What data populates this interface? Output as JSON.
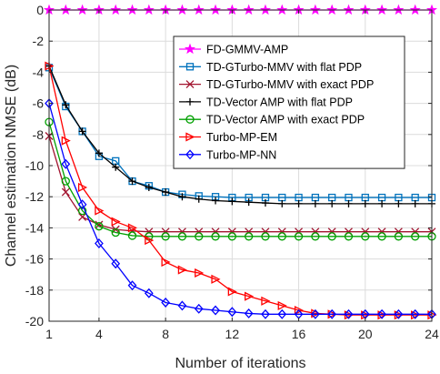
{
  "chart_data": {
    "type": "line",
    "title": "",
    "xlabel": "Number of iterations",
    "ylabel": "Channel estimation NMSE (dB)",
    "xlim": [
      1,
      24
    ],
    "ylim": [
      -20,
      0
    ],
    "xticks": [
      1,
      4,
      8,
      12,
      16,
      20,
      24
    ],
    "yticks": [
      0,
      -2,
      -4,
      -6,
      -8,
      -10,
      -12,
      -14,
      -16,
      -18,
      -20
    ],
    "grid": true,
    "legend_position": "top-right",
    "x": [
      1,
      2,
      3,
      4,
      5,
      6,
      7,
      8,
      9,
      10,
      11,
      12,
      13,
      14,
      15,
      16,
      17,
      18,
      19,
      20,
      21,
      22,
      23,
      24
    ],
    "series": [
      {
        "name": "FD-GMMV-AMP",
        "color": "#ff00ff",
        "marker": "star",
        "values": [
          0,
          0,
          0,
          0,
          0,
          0,
          0,
          0,
          0,
          0,
          0,
          0,
          0,
          0,
          0,
          0,
          0,
          0,
          0,
          0,
          0,
          0,
          0,
          0
        ]
      },
      {
        "name": "TD-GTurbo-MMV with flat PDP",
        "color": "#0072bd",
        "marker": "square",
        "values": [
          -3.7,
          -6.2,
          -7.8,
          -9.4,
          -9.7,
          -11.0,
          -11.3,
          -11.7,
          -11.85,
          -11.95,
          -12.0,
          -12.05,
          -12.05,
          -12.05,
          -12.05,
          -12.05,
          -12.05,
          -12.05,
          -12.05,
          -12.05,
          -12.05,
          -12.05,
          -12.05,
          -12.05
        ]
      },
      {
        "name": "TD-GTurbo-MMV with exact PDP",
        "color": "#a2142f",
        "marker": "x",
        "values": [
          -8.1,
          -11.7,
          -13.3,
          -13.8,
          -14.1,
          -14.2,
          -14.25,
          -14.25,
          -14.25,
          -14.25,
          -14.25,
          -14.25,
          -14.25,
          -14.25,
          -14.25,
          -14.25,
          -14.25,
          -14.25,
          -14.25,
          -14.25,
          -14.25,
          -14.25,
          -14.25,
          -14.25
        ]
      },
      {
        "name": "TD-Vector AMP with flat PDP",
        "color": "#000000",
        "marker": "plus",
        "values": [
          -3.6,
          -6.1,
          -7.8,
          -9.2,
          -10.1,
          -11.0,
          -11.4,
          -11.7,
          -12.0,
          -12.15,
          -12.25,
          -12.3,
          -12.35,
          -12.4,
          -12.45,
          -12.45,
          -12.45,
          -12.45,
          -12.45,
          -12.45,
          -12.45,
          -12.45,
          -12.45,
          -12.45
        ]
      },
      {
        "name": "TD-Vector AMP with exact PDP",
        "color": "#00a000",
        "marker": "circle",
        "values": [
          -7.2,
          -11.0,
          -12.9,
          -13.9,
          -14.3,
          -14.5,
          -14.55,
          -14.55,
          -14.55,
          -14.55,
          -14.55,
          -14.55,
          -14.55,
          -14.55,
          -14.55,
          -14.55,
          -14.55,
          -14.55,
          -14.55,
          -14.55,
          -14.55,
          -14.55,
          -14.55,
          -14.55
        ]
      },
      {
        "name": "Turbo-MP-EM",
        "color": "#ff0000",
        "marker": "triangle-right",
        "values": [
          -3.6,
          -8.4,
          -11.4,
          -12.9,
          -13.6,
          -14.0,
          -14.8,
          -16.2,
          -16.7,
          -16.9,
          -17.3,
          -18.1,
          -18.4,
          -18.7,
          -19.0,
          -19.3,
          -19.5,
          -19.55,
          -19.6,
          -19.6,
          -19.6,
          -19.6,
          -19.6,
          -19.6
        ]
      },
      {
        "name": "Turbo-MP-NN",
        "color": "#0000ff",
        "marker": "diamond",
        "values": [
          -6.0,
          -9.9,
          -12.5,
          -15.0,
          -16.3,
          -17.7,
          -18.2,
          -18.8,
          -19.0,
          -19.2,
          -19.3,
          -19.4,
          -19.5,
          -19.55,
          -19.55,
          -19.55,
          -19.55,
          -19.55,
          -19.55,
          -19.55,
          -19.55,
          -19.55,
          -19.55,
          -19.55
        ]
      }
    ]
  }
}
